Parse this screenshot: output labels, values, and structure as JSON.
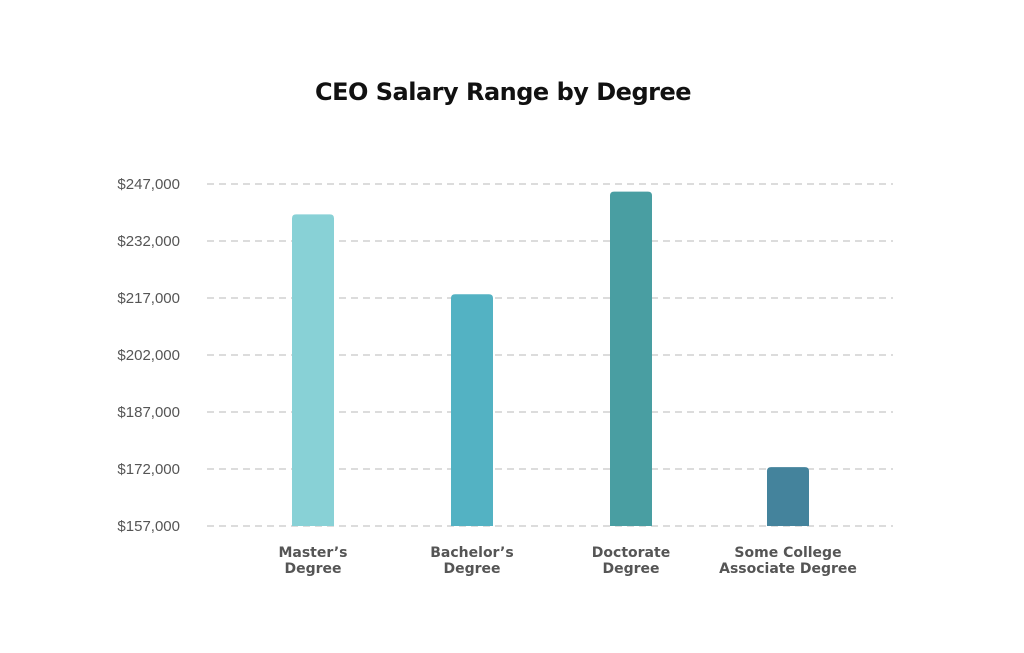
{
  "chart_data": {
    "type": "bar",
    "title": "CEO Salary Range by Degree",
    "categories": [
      [
        "Master’s",
        "Degree"
      ],
      [
        "Bachelor’s",
        "Degree"
      ],
      [
        "Doctorate",
        "Degree"
      ],
      [
        "Some College",
        "Associate Degree"
      ]
    ],
    "values": [
      239000,
      218000,
      245000,
      172500
    ],
    "colors": [
      "#88D1D6",
      "#53B2C3",
      "#499EA2",
      "#44839C"
    ],
    "ylim": [
      157000,
      247000
    ],
    "yticks": [
      247000,
      232000,
      217000,
      202000,
      187000,
      172000,
      157000
    ],
    "ytick_labels": [
      "$247,000",
      "$232,000",
      "$217,000",
      "$202,000",
      "$187,000",
      "$172,000",
      "$157,000"
    ],
    "grid": true,
    "legend": null
  }
}
